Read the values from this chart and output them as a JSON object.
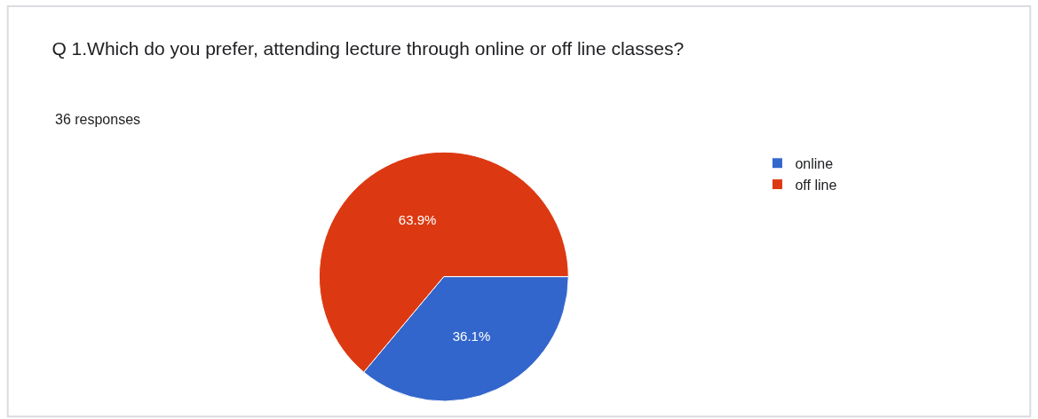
{
  "chart_data": {
    "type": "pie",
    "title": "Q 1.Which do you prefer, attending lecture through online or off line classes?",
    "subtitle": "36 responses",
    "categories": [
      "online",
      "off line"
    ],
    "values": [
      36.1,
      63.9
    ],
    "value_labels": [
      "36.1%",
      "63.9%"
    ],
    "colors": [
      "#3366cc",
      "#dc3912"
    ],
    "legend": "top right"
  }
}
